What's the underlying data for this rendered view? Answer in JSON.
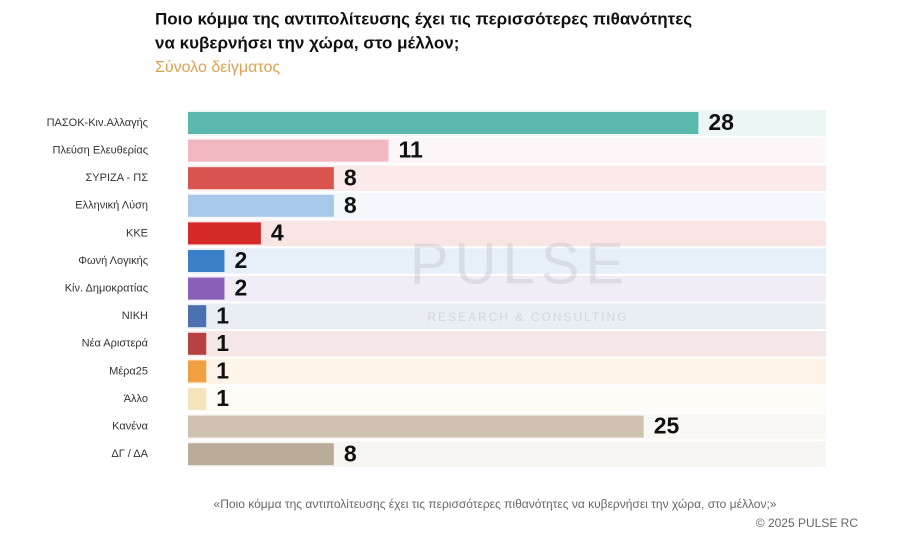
{
  "chart_data": {
    "type": "hbar",
    "title": [
      "Ποιο κόμμα της αντιπολίτευσης έχει τις περισσότερες πιθανότητες",
      "να κυβερνήσει την χώρα, στο μέλλον;"
    ],
    "subtitle": "Σύνολο δείγματος",
    "categories": [
      "ΠΑΣΟΚ-Κιν.Αλλαγής",
      "Πλεύση Ελευθερίας",
      "ΣΥΡΙΖΑ - ΠΣ",
      "Ελληνική Λύση",
      "ΚΚΕ",
      "Φωνή Λογικής",
      "Κίν. Δημοκρατίας",
      "ΝΙΚΗ",
      "Νέα Αριστερά",
      "Μέρα25",
      "Άλλο",
      "Κανένα",
      "ΔΓ / ΔΑ"
    ],
    "values": [
      28,
      11,
      8,
      8,
      4,
      2,
      2,
      1,
      1,
      1,
      1,
      25,
      8
    ],
    "colors": [
      "#5bb8ac",
      "#f2b8c2",
      "#d9534f",
      "#a8c8ea",
      "#d42a2a",
      "#3a80c8",
      "#8a60b8",
      "#4a70b0",
      "#b84040",
      "#f0a040",
      "#f3e4bc",
      "#cfc2b0",
      "#b8ab98"
    ],
    "xlim": [
      0,
      35
    ],
    "watermark": [
      "PULSE",
      "RESEARCH & CONSULTING"
    ],
    "footnote": "«Ποιο κόμμα της αντιπολίτευσης έχει τις περισσότερες πιθανότητες να κυβερνήσει την χώρα, στο μέλλον;»",
    "copyright": "©  2025  PULSE RC"
  }
}
